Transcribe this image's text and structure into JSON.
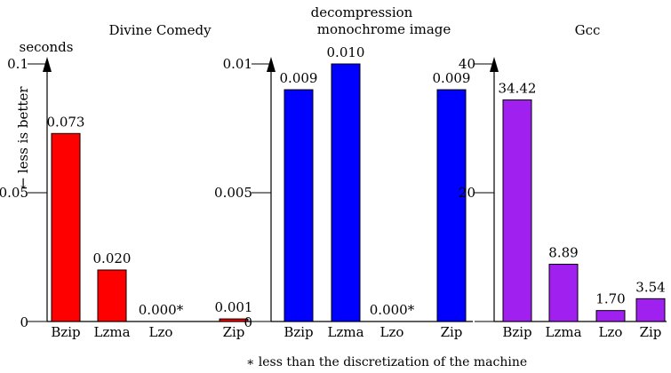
{
  "header": {
    "line1": "decompression",
    "line2": "monochrome image"
  },
  "y_unit": "seconds",
  "y_note": "← less is better",
  "footnote": "∗ less than the discretization of the machine",
  "chart_data": [
    {
      "type": "bar",
      "title": "Divine Comedy",
      "categories": [
        "Bzip",
        "Lzma",
        "Lzo",
        "Zip"
      ],
      "values": [
        0.073,
        0.02,
        0.0,
        0.001
      ],
      "labels": [
        "0.073",
        "0.020",
        "0.000*",
        "0.001"
      ],
      "ylim": [
        0,
        0.1
      ],
      "yticks": [
        "0",
        "0.05",
        "0.1"
      ],
      "ylabel": "seconds",
      "color": "#ff0000"
    },
    {
      "type": "bar",
      "title": "",
      "categories": [
        "Bzip",
        "Lzma",
        "Lzo",
        "Zip"
      ],
      "values": [
        0.009,
        0.01,
        0.0,
        0.009
      ],
      "labels": [
        "0.009",
        "0.010",
        "0.000*",
        "0.009"
      ],
      "ylim": [
        0,
        0.01
      ],
      "yticks": [
        "0",
        "0.005",
        "0.01"
      ],
      "color": "#0000ff"
    },
    {
      "type": "bar",
      "title": "Gcc",
      "categories": [
        "Bzip",
        "Lzma",
        "Lzo",
        "Zip"
      ],
      "values": [
        34.42,
        8.89,
        1.7,
        3.54
      ],
      "labels": [
        "34.42",
        "8.89",
        "1.70",
        "3.54"
      ],
      "ylim": [
        0,
        40
      ],
      "yticks": [
        "",
        "20",
        "40"
      ],
      "color": "#a020f0"
    }
  ]
}
